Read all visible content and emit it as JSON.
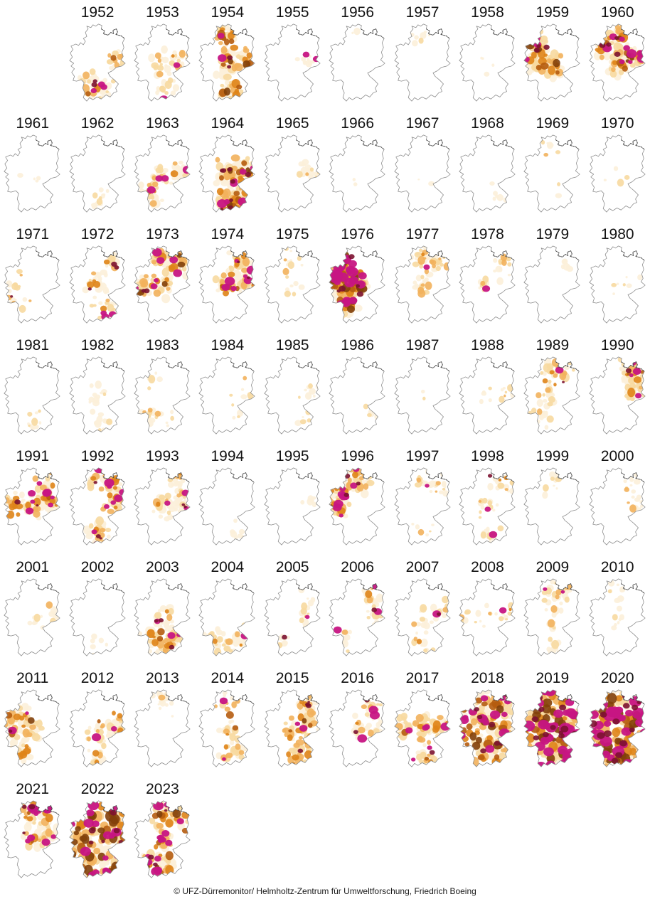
{
  "figure": {
    "subject": "Annual soil drought maps of Germany, small multiples by year",
    "credit": "© UFZ-Dürremonitor/ Helmholtz-Zentrum für Umweltforschung, Friedrich Boeing",
    "region": "Germany",
    "outline_color": "#8b8b8b",
    "coast_detail_color": "#3c3c3c",
    "palette": {
      "ramp": [
        "#fcf0d9",
        "#f7d9a0",
        "#f2b15c",
        "#df8418",
        "#b55c10",
        "#82400a"
      ],
      "maroon": "#7c1230",
      "magenta": "#c71583",
      "background": "#ffffff"
    },
    "severity_scale_note": "cover = estimated fraction of country shaded orange/brown; magenta = estimated fraction shaded exceptional-drought magenta; regions = where drought is concentrated",
    "years": [
      {
        "year": 1952,
        "cover": 0.35,
        "magenta": 0.06,
        "regions": "e,s,sw"
      },
      {
        "year": 1953,
        "cover": 0.25,
        "magenta": 0.02,
        "regions": "c,e,s"
      },
      {
        "year": 1954,
        "cover": 0.6,
        "magenta": 0.05,
        "regions": "n,e,c,s"
      },
      {
        "year": 1955,
        "cover": 0.04,
        "magenta": 0.02,
        "regions": "e"
      },
      {
        "year": 1956,
        "cover": 0.02,
        "magenta": 0.0,
        "regions": "n"
      },
      {
        "year": 1957,
        "cover": 0.03,
        "magenta": 0.0,
        "regions": "n"
      },
      {
        "year": 1958,
        "cover": 0.02,
        "magenta": 0.0,
        "regions": "c"
      },
      {
        "year": 1959,
        "cover": 0.55,
        "magenta": 0.08,
        "regions": "w,nw,c"
      },
      {
        "year": 1960,
        "cover": 0.6,
        "magenta": 0.18,
        "regions": "n,nw,c,e"
      },
      {
        "year": 1961,
        "cover": 0.02,
        "magenta": 0.0,
        "regions": "c"
      },
      {
        "year": 1962,
        "cover": 0.06,
        "magenta": 0.0,
        "regions": "s"
      },
      {
        "year": 1963,
        "cover": 0.3,
        "magenta": 0.05,
        "regions": "c,e,sw"
      },
      {
        "year": 1964,
        "cover": 0.65,
        "magenta": 0.2,
        "regions": "c,e,s,se"
      },
      {
        "year": 1965,
        "cover": 0.08,
        "magenta": 0.0,
        "regions": "e"
      },
      {
        "year": 1966,
        "cover": 0.01,
        "magenta": 0.0,
        "regions": "c"
      },
      {
        "year": 1967,
        "cover": 0.01,
        "magenta": 0.0,
        "regions": "c"
      },
      {
        "year": 1968,
        "cover": 0.03,
        "magenta": 0.0,
        "regions": "se"
      },
      {
        "year": 1969,
        "cover": 0.04,
        "magenta": 0.0,
        "regions": "n,se"
      },
      {
        "year": 1970,
        "cover": 0.02,
        "magenta": 0.0,
        "regions": "c"
      },
      {
        "year": 1971,
        "cover": 0.08,
        "magenta": 0.01,
        "regions": "sw,w"
      },
      {
        "year": 1972,
        "cover": 0.3,
        "magenta": 0.08,
        "regions": "s,se,c,ne"
      },
      {
        "year": 1973,
        "cover": 0.55,
        "magenta": 0.12,
        "regions": "n,ne,w,c"
      },
      {
        "year": 1974,
        "cover": 0.45,
        "magenta": 0.12,
        "regions": "ne,e,c"
      },
      {
        "year": 1975,
        "cover": 0.08,
        "magenta": 0.0,
        "regions": "n,c"
      },
      {
        "year": 1976,
        "cover": 0.8,
        "magenta": 0.4,
        "regions": "w,nw,c,sw"
      },
      {
        "year": 1977,
        "cover": 0.3,
        "magenta": 0.01,
        "regions": "n,c,ne"
      },
      {
        "year": 1978,
        "cover": 0.12,
        "magenta": 0.01,
        "regions": "ne,c"
      },
      {
        "year": 1979,
        "cover": 0.03,
        "magenta": 0.0,
        "regions": "ne"
      },
      {
        "year": 1980,
        "cover": 0.03,
        "magenta": 0.0,
        "regions": "c,e"
      },
      {
        "year": 1981,
        "cover": 0.06,
        "magenta": 0.0,
        "regions": "s"
      },
      {
        "year": 1982,
        "cover": 0.1,
        "magenta": 0.0,
        "regions": "c,s"
      },
      {
        "year": 1983,
        "cover": 0.12,
        "magenta": 0.0,
        "regions": "nw,s,sw"
      },
      {
        "year": 1984,
        "cover": 0.06,
        "magenta": 0.0,
        "regions": "se,e"
      },
      {
        "year": 1985,
        "cover": 0.06,
        "magenta": 0.0,
        "regions": "se,e"
      },
      {
        "year": 1986,
        "cover": 0.03,
        "magenta": 0.0,
        "regions": "se"
      },
      {
        "year": 1987,
        "cover": 0.01,
        "magenta": 0.0,
        "regions": "c"
      },
      {
        "year": 1988,
        "cover": 0.06,
        "magenta": 0.0,
        "regions": "c,e"
      },
      {
        "year": 1989,
        "cover": 0.3,
        "magenta": 0.02,
        "regions": "ne,n,c,sw"
      },
      {
        "year": 1990,
        "cover": 0.35,
        "magenta": 0.08,
        "regions": "ne,e"
      },
      {
        "year": 1991,
        "cover": 0.45,
        "magenta": 0.12,
        "regions": "c,e,w,ne"
      },
      {
        "year": 1992,
        "cover": 0.45,
        "magenta": 0.15,
        "regions": "e,ne,n,s"
      },
      {
        "year": 1993,
        "cover": 0.3,
        "magenta": 0.06,
        "regions": "ne,e,c"
      },
      {
        "year": 1994,
        "cover": 0.04,
        "magenta": 0.0,
        "regions": "se"
      },
      {
        "year": 1995,
        "cover": 0.03,
        "magenta": 0.0,
        "regions": "e"
      },
      {
        "year": 1996,
        "cover": 0.45,
        "magenta": 0.15,
        "regions": "nw,n,w"
      },
      {
        "year": 1997,
        "cover": 0.15,
        "magenta": 0.01,
        "regions": "n,ne,s"
      },
      {
        "year": 1998,
        "cover": 0.2,
        "magenta": 0.04,
        "regions": "ne,s,c"
      },
      {
        "year": 1999,
        "cover": 0.04,
        "magenta": 0.0,
        "regions": "n"
      },
      {
        "year": 2000,
        "cover": 0.08,
        "magenta": 0.0,
        "regions": "e,ne"
      },
      {
        "year": 2001,
        "cover": 0.07,
        "magenta": 0.0,
        "regions": "e,c"
      },
      {
        "year": 2002,
        "cover": 0.03,
        "magenta": 0.0,
        "regions": "s"
      },
      {
        "year": 2003,
        "cover": 0.45,
        "magenta": 0.08,
        "regions": "s,se,sw,c"
      },
      {
        "year": 2004,
        "cover": 0.25,
        "magenta": 0.02,
        "regions": "s,sw,se"
      },
      {
        "year": 2005,
        "cover": 0.1,
        "magenta": 0.02,
        "regions": "sw,ne,e"
      },
      {
        "year": 2006,
        "cover": 0.2,
        "magenta": 0.05,
        "regions": "e,ne,sw"
      },
      {
        "year": 2007,
        "cover": 0.15,
        "magenta": 0.02,
        "regions": "e,s,c"
      },
      {
        "year": 2008,
        "cover": 0.1,
        "magenta": 0.01,
        "regions": "c,e,w"
      },
      {
        "year": 2009,
        "cover": 0.25,
        "magenta": 0.02,
        "regions": "n,ne,c,s"
      },
      {
        "year": 2010,
        "cover": 0.08,
        "magenta": 0.0,
        "regions": "n,c"
      },
      {
        "year": 2011,
        "cover": 0.45,
        "magenta": 0.04,
        "regions": "w,nw,sw,c"
      },
      {
        "year": 2012,
        "cover": 0.3,
        "magenta": 0.03,
        "regions": "c,s,e"
      },
      {
        "year": 2013,
        "cover": 0.08,
        "magenta": 0.0,
        "regions": "n"
      },
      {
        "year": 2014,
        "cover": 0.3,
        "magenta": 0.03,
        "regions": "n,s,se,c"
      },
      {
        "year": 2015,
        "cover": 0.5,
        "magenta": 0.08,
        "regions": "s,e,se,c,ne"
      },
      {
        "year": 2016,
        "cover": 0.2,
        "magenta": 0.06,
        "regions": "e,ne,c"
      },
      {
        "year": 2017,
        "cover": 0.45,
        "magenta": 0.1,
        "regions": "c,e,w,s"
      },
      {
        "year": 2018,
        "cover": 0.75,
        "magenta": 0.25,
        "regions": "all"
      },
      {
        "year": 2019,
        "cover": 0.85,
        "magenta": 0.6,
        "regions": "all"
      },
      {
        "year": 2020,
        "cover": 0.85,
        "magenta": 0.55,
        "regions": "all"
      },
      {
        "year": 2021,
        "cover": 0.4,
        "magenta": 0.18,
        "regions": "c,n,ne,e"
      },
      {
        "year": 2022,
        "cover": 0.85,
        "magenta": 0.35,
        "regions": "all"
      },
      {
        "year": 2023,
        "cover": 0.6,
        "magenta": 0.25,
        "regions": "ne,n,c,s,sw"
      }
    ]
  }
}
